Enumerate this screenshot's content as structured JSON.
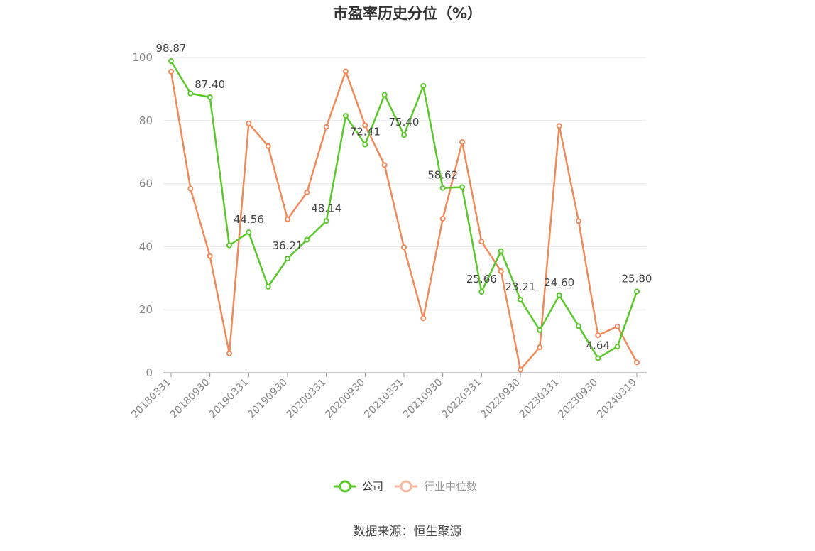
{
  "chart_data": {
    "type": "line",
    "title": "市盈率历史分位（%）",
    "ylim": [
      0,
      100
    ],
    "yticks": [
      "0",
      "20",
      "40",
      "60",
      "80",
      "100"
    ],
    "x": [
      "20180331",
      "20180630",
      "20180930",
      "20181231",
      "20190331",
      "20190630",
      "20190930",
      "20191231",
      "20200331",
      "20200630",
      "20200930",
      "20201231",
      "20210331",
      "20210630",
      "20210930",
      "20211231",
      "20220331",
      "20220630",
      "20220930",
      "20221231",
      "20230331",
      "20230630",
      "20230930",
      "20231231",
      "20240319"
    ],
    "xtick_labels": [
      "20180331",
      "20180930",
      "20190331",
      "20190930",
      "20200331",
      "20200930",
      "20210331",
      "20210930",
      "20220331",
      "20220930",
      "20230331",
      "20230930",
      "20240319"
    ],
    "grid": true,
    "legend_position": "bottom",
    "series": [
      {
        "name": "公司",
        "color": "#5ac82a",
        "values": [
          98.87,
          88.6,
          87.4,
          40.4,
          44.56,
          27.3,
          36.21,
          42.2,
          48.14,
          81.5,
          72.41,
          88.2,
          75.4,
          91.0,
          58.62,
          58.9,
          25.66,
          38.6,
          23.21,
          13.5,
          24.6,
          14.8,
          4.64,
          8.3,
          25.8
        ],
        "labels": {
          "0": "98.87",
          "2": "87.40",
          "4": "44.56",
          "6": "36.21",
          "8": "48.14",
          "10": "72.41",
          "12": "75.40",
          "14": "58.62",
          "16": "25.66",
          "18": "23.21",
          "20": "24.60",
          "22": "4.64",
          "24": "25.80"
        }
      },
      {
        "name": "行业中位数",
        "color": "#f08a5a",
        "values": [
          95.5,
          58.4,
          37.0,
          6.1,
          79.1,
          71.9,
          48.7,
          57.2,
          78.0,
          95.6,
          78.5,
          65.9,
          39.8,
          17.3,
          48.9,
          73.2,
          41.6,
          32.2,
          1.0,
          8.1,
          78.3,
          48.1,
          11.9,
          14.7,
          3.3
        ]
      }
    ]
  },
  "legend": {
    "company": "公司",
    "industry": "行业中位数"
  },
  "source": "数据来源：恒生聚源"
}
